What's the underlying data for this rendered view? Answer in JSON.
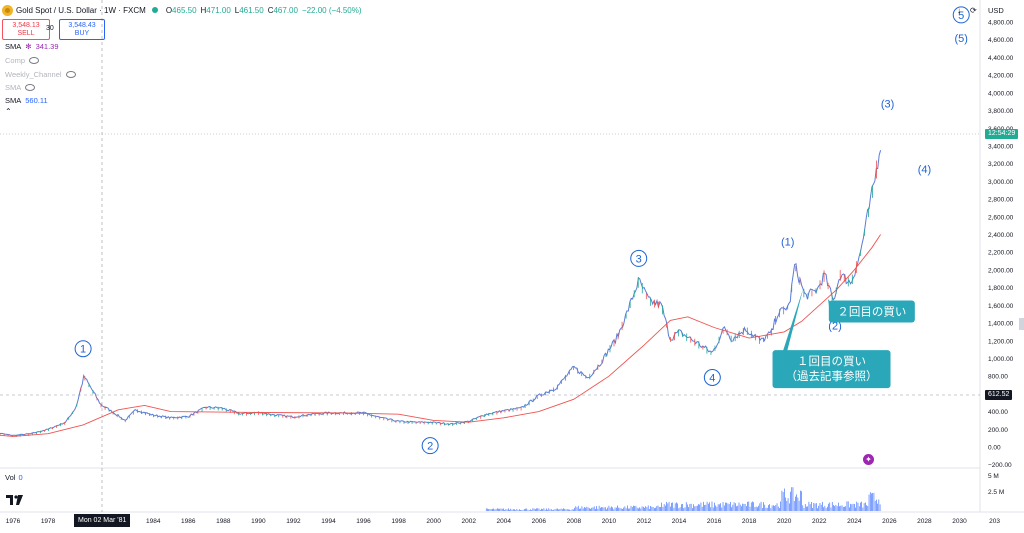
{
  "header": {
    "symbol": "Gold Spot / U.S. Dollar · 1W · FXCM",
    "ohlc": [
      {
        "key": "O",
        "value": "465.50"
      },
      {
        "key": "H",
        "value": "471.00"
      },
      {
        "key": "L",
        "value": "461.50"
      },
      {
        "key": "C",
        "value": "467.00"
      }
    ],
    "change": "−22.00 (−4.50%)"
  },
  "trade": {
    "sell_price": "3,548.13",
    "sell_label": "SELL",
    "spread": "30",
    "buy_price": "3,548.43",
    "buy_label": "BUY"
  },
  "indicators": [
    {
      "name": "SMA",
      "value": "341.39",
      "color": "#9c27b0",
      "dim": false
    },
    {
      "name": "Comp",
      "value": "",
      "dim": true
    },
    {
      "name": "Weekly_Channel",
      "value": "",
      "dim": true
    },
    {
      "name": "SMA",
      "value": "",
      "dim": true
    },
    {
      "name": "SMA",
      "value": "560.11",
      "color": "#2962ff",
      "dim": false
    }
  ],
  "volume": {
    "label": "Vol",
    "value": "0"
  },
  "currency": "USD",
  "countdown_tag": "12:54:29",
  "price_tag": "612.52",
  "crosshair_date": "Mon 02 Mar '81",
  "colors": {
    "up": "#26a69a",
    "down": "#ef5350",
    "price_line": "#5b7bd6",
    "sma": "#ef5350",
    "volume": "#2962ff",
    "annotation": "#1e63d6",
    "callout": "#2aa7b8"
  },
  "chart_data": {
    "type": "line",
    "title": "Gold Spot / U.S. Dollar · 1W · FXCM",
    "x_ticks": [
      "1976",
      "1978",
      "1984",
      "1986",
      "1988",
      "1990",
      "1992",
      "1994",
      "1996",
      "1998",
      "2000",
      "2002",
      "2004",
      "2006",
      "2008",
      "2010",
      "2012",
      "2014",
      "2016",
      "2018",
      "2020",
      "2022",
      "2024",
      "2026",
      "2028",
      "2030",
      "203"
    ],
    "y_ticks": [
      "4,800.00",
      "4,600.00",
      "4,400.00",
      "4,200.00",
      "4,000.00",
      "3,800.00",
      "3,600.00",
      "3,400.00",
      "3,200.00",
      "3,000.00",
      "2,800.00",
      "2,600.00",
      "2,400.00",
      "2,200.00",
      "2,000.00",
      "1,800.00",
      "1,600.00",
      "1,400.00",
      "1,200.00",
      "1,000.00",
      "800.00",
      "400.00",
      "200.00",
      "0.00",
      "−200.00"
    ],
    "ylim": [
      -200,
      4900
    ],
    "volume_ticks": [
      "5 M",
      "2.5 M"
    ],
    "series": [
      {
        "name": "Gold Spot / U.S. Dollar",
        "x": [
          1974.8,
          1976,
          1977,
          1978,
          1979,
          1979.6,
          1980.05,
          1980.5,
          1981,
          1981.5,
          1982.4,
          1983,
          1984,
          1985,
          1986,
          1987,
          1987.9,
          1989,
          1990,
          1991,
          1992,
          1993,
          1994,
          1995,
          1996,
          1997,
          1998,
          1999,
          1999.8,
          2001,
          2002,
          2003,
          2004,
          2005,
          2006,
          2007,
          2008,
          2008.8,
          2009.5,
          2010,
          2010.5,
          2011,
          2011.7,
          2012.3,
          2013,
          2013.5,
          2014,
          2015,
          2015.9,
          2016.6,
          2017,
          2017.8,
          2018.7,
          2019.3,
          2019.6,
          2020.3,
          2020.6,
          2021.2,
          2021.9,
          2022.3,
          2022.8,
          2023.2,
          2023.8,
          2024.3,
          2024.8,
          2025.2,
          2025.5
        ],
        "y": [
          170,
          130,
          150,
          200,
          280,
          450,
          800,
          650,
          480,
          420,
          300,
          420,
          360,
          330,
          345,
          450,
          440,
          375,
          390,
          360,
          340,
          370,
          385,
          385,
          385,
          330,
          290,
          280,
          280,
          260,
          290,
          370,
          410,
          440,
          580,
          670,
          900,
          780,
          940,
          1100,
          1250,
          1500,
          1880,
          1650,
          1600,
          1220,
          1300,
          1180,
          1060,
          1350,
          1220,
          1330,
          1200,
          1300,
          1500,
          1600,
          2060,
          1700,
          1780,
          1950,
          1650,
          1950,
          1850,
          2150,
          2650,
          3050,
          3450
        ]
      },
      {
        "name": "SMA",
        "x": [
          1974.8,
          1976,
          1978,
          1980,
          1982,
          1983.5,
          1985,
          1990,
          1995,
          1998,
          2000,
          2002,
          2004,
          2006,
          2008,
          2010,
          2012,
          2013.5,
          2014.5,
          2016,
          2018,
          2020,
          2021,
          2022,
          2023,
          2024,
          2025,
          2025.5
        ],
        "y": [
          140,
          120,
          150,
          250,
          420,
          470,
          400,
          390,
          385,
          370,
          300,
          280,
          330,
          400,
          540,
          800,
          1150,
          1430,
          1470,
          1350,
          1230,
          1300,
          1420,
          1600,
          1780,
          2000,
          2250,
          2400
        ]
      }
    ],
    "annotations": [
      {
        "text": "1",
        "style": "circled",
        "x": 1980.0,
        "y": 1110
      },
      {
        "text": "2",
        "style": "circled",
        "x": 1999.8,
        "y": 15
      },
      {
        "text": "3",
        "style": "circled",
        "x": 2011.7,
        "y": 2130
      },
      {
        "text": "4",
        "style": "circled",
        "x": 2015.9,
        "y": 785
      },
      {
        "text": "5",
        "style": "circled",
        "x": 2030.1,
        "y": 4880
      },
      {
        "text": "(1)",
        "style": "plain",
        "x": 2020.2,
        "y": 2320
      },
      {
        "text": "(2)",
        "style": "plain",
        "x": 2022.9,
        "y": 1370
      },
      {
        "text": "(3)",
        "style": "plain",
        "x": 2025.9,
        "y": 3880
      },
      {
        "text": "(4)",
        "style": "plain",
        "x": 2028.0,
        "y": 3140
      },
      {
        "text": "(5)",
        "style": "plain",
        "x": 2030.1,
        "y": 4620
      }
    ],
    "callouts": [
      {
        "lines": [
          "２回目の買い"
        ],
        "x": 2025.0,
        "y": 1530,
        "target_x": 2022.5,
        "target_y": 1670
      },
      {
        "lines": [
          "１回目の買い",
          "（過去記事参照）"
        ],
        "x": 2022.7,
        "y": 880,
        "target_x": 2021.1,
        "target_y": 1800
      }
    ]
  }
}
